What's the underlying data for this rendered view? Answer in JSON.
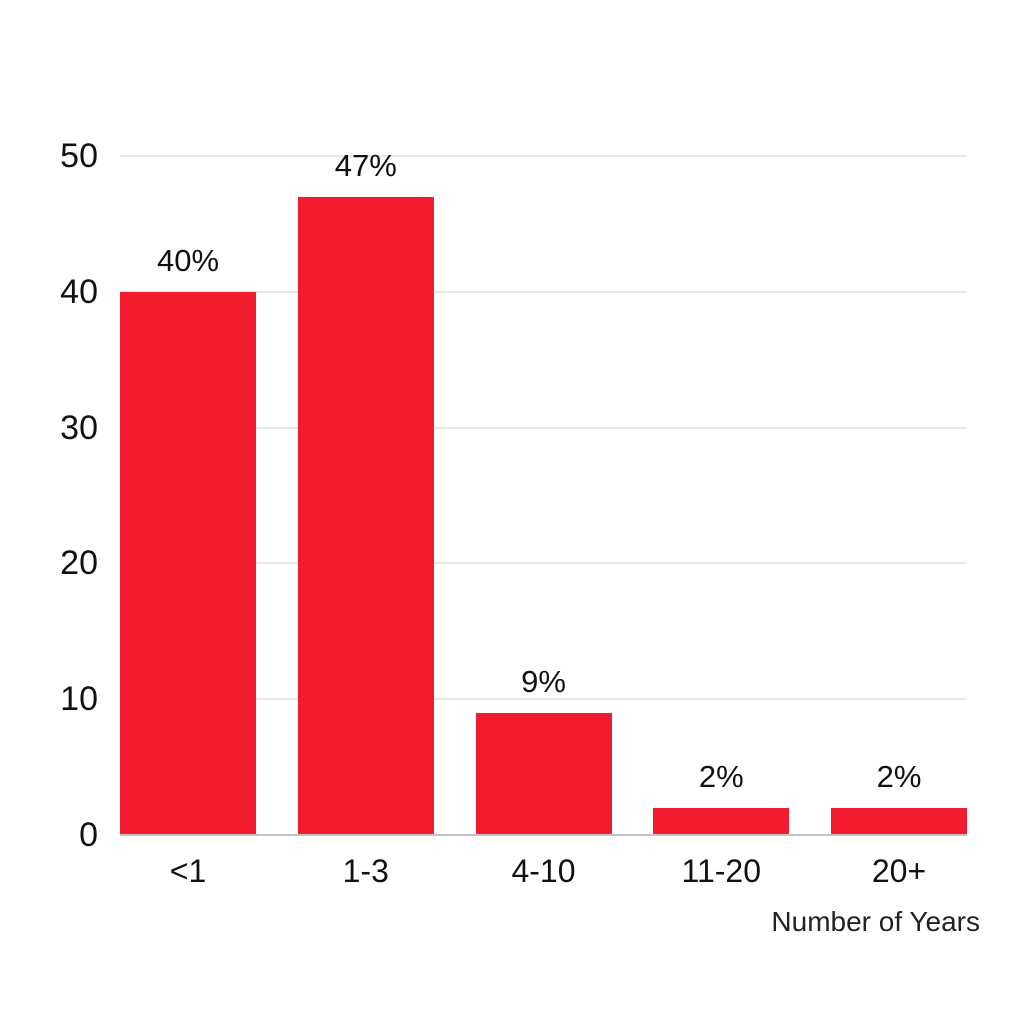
{
  "chart_data": {
    "type": "bar",
    "title": "",
    "xlabel": "Number of Years",
    "ylabel": "",
    "categories": [
      "<1",
      "1-3",
      "4-10",
      "11-20",
      "20+"
    ],
    "values": [
      40,
      47,
      9,
      2,
      2
    ],
    "bar_labels": [
      "40%",
      "47%",
      "9%",
      "2%",
      "2%"
    ],
    "yticks": [
      0,
      10,
      20,
      30,
      40,
      50
    ],
    "ylim": [
      0,
      50
    ],
    "grid": "horizontal-gridlines-on",
    "legend": "none",
    "colors": {
      "bar": "#F21C2E",
      "gridline": "#E7E7E7",
      "axis_line": "#C4C4C4",
      "text": "#111111",
      "background": "#FFFFFF"
    }
  }
}
